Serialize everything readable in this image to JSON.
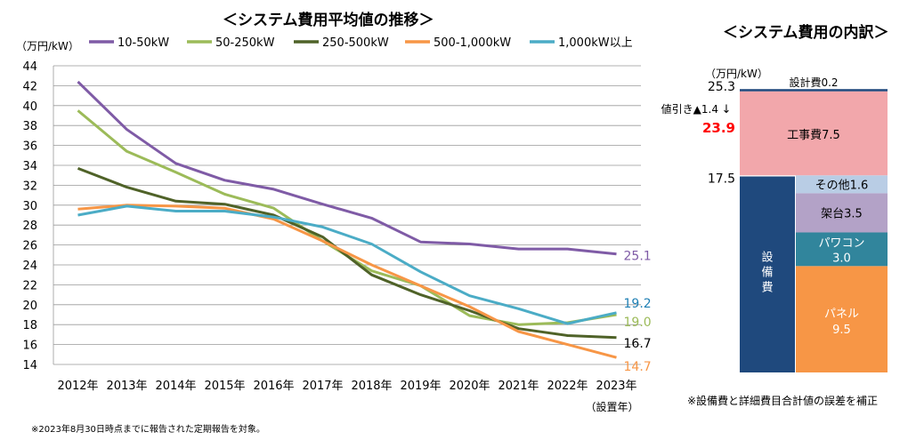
{
  "titles": {
    "line": "＜システム費用平均値の推移＞",
    "bar": "＜システム費用の内訳＞"
  },
  "notes": {
    "footnote": "※2023年8月30日時点までに報告された定期報告を対象。",
    "bar_note": "※設備費と詳細費目合計値の誤差を補正"
  },
  "chart_data": [
    {
      "type": "line",
      "title": "＜システム費用平均値の推移＞",
      "ylabel": "（万円/kW）",
      "xlabel": "（設置年）",
      "ylim": [
        14,
        44
      ],
      "yticks": [
        14,
        16,
        18,
        20,
        22,
        24,
        26,
        28,
        30,
        32,
        34,
        36,
        38,
        40,
        42,
        44
      ],
      "grid": true,
      "legend": "top",
      "categories": [
        "2012年",
        "2013年",
        "2014年",
        "2015年",
        "2016年",
        "2017年",
        "2018年",
        "2019年",
        "2020年",
        "2021年",
        "2022年",
        "2023年"
      ],
      "series": [
        {
          "name": "10-50kW",
          "color": "#7f5ba6",
          "values": [
            42.4,
            37.6,
            34.2,
            32.5,
            31.6,
            30.1,
            28.7,
            26.3,
            26.1,
            25.6,
            25.6,
            25.1
          ],
          "end_label": "25.1",
          "end_color": "#7f5ba6"
        },
        {
          "name": "50-250kW",
          "color": "#9cbb59",
          "values": [
            39.5,
            35.4,
            33.3,
            31.1,
            29.7,
            26.4,
            23.4,
            21.9,
            18.9,
            18.0,
            18.2,
            19.0
          ],
          "end_label": "19.0",
          "end_color": "#9cbb59"
        },
        {
          "name": "250-500kW",
          "color": "#4f6228",
          "values": [
            33.7,
            31.8,
            30.4,
            30.1,
            29.0,
            26.8,
            23.0,
            21.0,
            19.4,
            17.6,
            16.9,
            16.7
          ],
          "end_label": "16.7",
          "end_color": "#000000"
        },
        {
          "name": "500-1,000kW",
          "color": "#f79646",
          "values": [
            29.6,
            30.0,
            29.9,
            29.7,
            28.6,
            26.4,
            24.0,
            21.9,
            19.8,
            17.3,
            16.0,
            14.7
          ],
          "end_label": "14.7",
          "end_color": "#f79646"
        },
        {
          "name": "1,000kW以上",
          "color": "#4bacc6",
          "values": [
            29.0,
            29.9,
            29.4,
            29.4,
            28.8,
            27.8,
            26.1,
            23.3,
            20.9,
            19.6,
            18.1,
            19.2
          ],
          "end_label": "19.2",
          "end_color": "#1f7fb4"
        }
      ]
    },
    {
      "type": "bar",
      "title": "＜システム費用の内訳＞",
      "ylabel": "（万円/kW）",
      "left_bar": {
        "label": "設備費",
        "value": 17.5,
        "color": "#1f497d"
      },
      "right_bar": [
        {
          "label": "パネル",
          "value": 9.5,
          "color": "#f79646"
        },
        {
          "label": "パワコン",
          "value": 3.0,
          "color": "#31859c"
        },
        {
          "label": "架台",
          "value": 3.5,
          "color": "#b3a2c7"
        },
        {
          "label": "その他",
          "value": 1.6,
          "color": "#b9cde5"
        },
        {
          "label": "工事費",
          "value": 7.5,
          "color": "#f2a7ab"
        },
        {
          "label": "設計費",
          "value": 0.2,
          "color": "#1f497d"
        }
      ],
      "totals": {
        "gross": "25.3",
        "discount_label": "値引き▲1.4",
        "net": "23.9",
        "equipment": "17.5"
      },
      "labels": {
        "panel": "パネル",
        "panel_val": "9.5",
        "pcs": "パワコン",
        "pcs_val": "3.0",
        "mount": "架台3.5",
        "other": "その他1.6",
        "construction": "工事費7.5",
        "design": "設計費0.2",
        "equipment": "設備費"
      }
    }
  ]
}
